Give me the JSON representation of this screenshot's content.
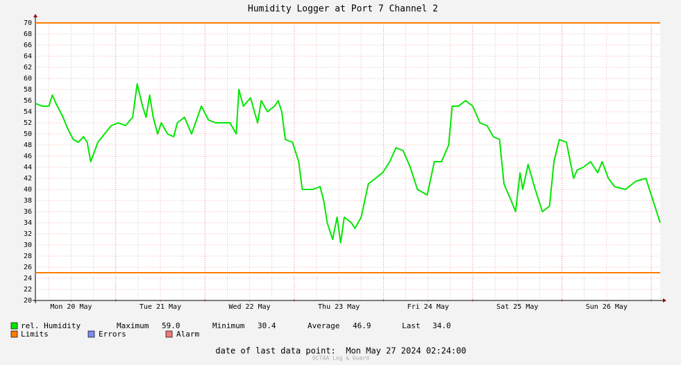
{
  "chart_data": {
    "type": "line",
    "title": "Humidity Logger at Port 7 Channel 2",
    "xlim": [
      0.1,
      7.1
    ],
    "xticks": [
      {
        "value": 0.5,
        "label": "Mon 20 May"
      },
      {
        "value": 1.5,
        "label": "Tue 21 May"
      },
      {
        "value": 2.5,
        "label": "Wed 22 May"
      },
      {
        "value": 3.5,
        "label": "Thu 23 May"
      },
      {
        "value": 4.5,
        "label": "Fri 24 May"
      },
      {
        "value": 5.5,
        "label": "Sat 25 May"
      },
      {
        "value": 6.5,
        "label": "Sun 26 May"
      }
    ],
    "ylim": [
      20,
      70
    ],
    "yticks": [
      20,
      22,
      24,
      26,
      28,
      30,
      32,
      34,
      36,
      38,
      40,
      42,
      44,
      46,
      48,
      50,
      52,
      54,
      56,
      58,
      60,
      62,
      64,
      66,
      68,
      70
    ],
    "grid": true,
    "x": [
      0.1,
      0.175,
      0.25,
      0.29,
      0.33,
      0.41,
      0.46,
      0.525,
      0.58,
      0.64,
      0.68,
      0.72,
      0.8,
      0.875,
      0.95,
      1.03,
      1.11,
      1.19,
      1.24,
      1.3,
      1.34,
      1.38,
      1.42,
      1.47,
      1.51,
      1.58,
      1.65,
      1.69,
      1.77,
      1.85,
      1.96,
      2.04,
      2.12,
      2.2,
      2.28,
      2.35,
      2.38,
      2.43,
      2.51,
      2.59,
      2.63,
      2.7,
      2.78,
      2.82,
      2.86,
      2.9,
      2.98,
      3.05,
      3.09,
      3.21,
      3.29,
      3.33,
      3.37,
      3.43,
      3.48,
      3.52,
      3.56,
      3.64,
      3.68,
      3.75,
      3.83,
      3.91,
      3.99,
      4.07,
      4.14,
      4.22,
      4.3,
      4.38,
      4.49,
      4.57,
      4.65,
      4.73,
      4.77,
      4.84,
      4.92,
      5.0,
      5.08,
      5.16,
      5.23,
      5.3,
      5.35,
      5.43,
      5.48,
      5.53,
      5.56,
      5.62,
      5.7,
      5.78,
      5.86,
      5.91,
      5.97,
      6.05,
      6.13,
      6.17,
      6.24,
      6.32,
      6.4,
      6.45,
      6.52,
      6.59,
      6.71,
      6.83,
      6.94,
      7.02,
      7.1
    ],
    "series": [
      {
        "name": "rel. Humidity",
        "color": "#00e600",
        "values": [
          55.5,
          55,
          55,
          57,
          55.5,
          53,
          51,
          49,
          48.5,
          49.5,
          48.5,
          45,
          48.5,
          50,
          51.5,
          52,
          51.5,
          53,
          59,
          55,
          53,
          57,
          53,
          50,
          52,
          50,
          49.5,
          52,
          53,
          50,
          55,
          52.5,
          52,
          52,
          52,
          50,
          58,
          55,
          56.5,
          52,
          56,
          54,
          55,
          56,
          54,
          49,
          48.5,
          45,
          40,
          40,
          40.5,
          38,
          34,
          31,
          35,
          30.4,
          35,
          34,
          33,
          35,
          41,
          42,
          43,
          45,
          47.5,
          47,
          44,
          40,
          39,
          45,
          45,
          48,
          55,
          55,
          56,
          55,
          52,
          51.5,
          49.5,
          49,
          41,
          38,
          36,
          43,
          40,
          44.5,
          40,
          36,
          37,
          45,
          49,
          48.5,
          42,
          43.5,
          44,
          45,
          43,
          45,
          42,
          40.5,
          40,
          41.5,
          42,
          38,
          34
        ]
      }
    ],
    "limits": {
      "name": "Limits",
      "color": "#ff7b00",
      "values": [
        70,
        25
      ]
    },
    "errors": {
      "name": "Errors",
      "color": "#7a8cf0"
    },
    "alarm": {
      "name": "Alarm",
      "color": "#f07a7a"
    },
    "stats": [
      {
        "label": "Maximum",
        "value": "59.0"
      },
      {
        "label": "Minimum",
        "value": "30.4"
      },
      {
        "label": "Average",
        "value": "46.9"
      },
      {
        "label": "Last",
        "value": "34.0"
      }
    ],
    "footer": "date of last data point:  Mon May 27 2024 02:24:00",
    "credit": "OCTAA Log & Guard"
  }
}
